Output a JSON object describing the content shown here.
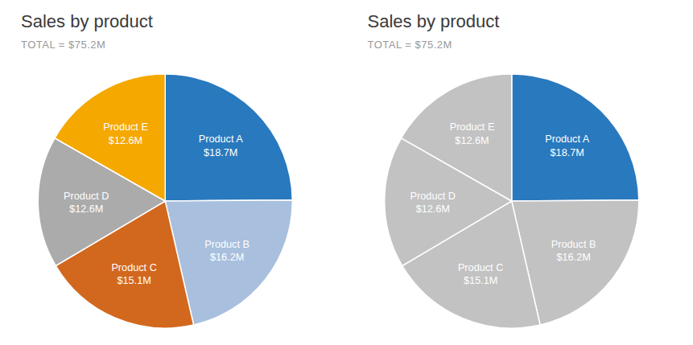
{
  "chart_data": [
    {
      "type": "pie",
      "title": "Sales by product",
      "subtitle": "TOTAL = $75.2M",
      "categories": [
        "Product A",
        "Product B",
        "Product C",
        "Product D",
        "Product E"
      ],
      "values": [
        18.7,
        16.2,
        15.1,
        12.6,
        12.6
      ],
      "value_labels": [
        "$18.7M",
        "$16.2M",
        "$15.1M",
        "$12.6M",
        "$12.6M"
      ],
      "colors": [
        "#2979BE",
        "#A8BFDE",
        "#D2681E",
        "#ABABAB",
        "#F5A800"
      ],
      "data_labels": true
    },
    {
      "type": "pie",
      "title": "Sales by product",
      "subtitle": "TOTAL = $75.2M",
      "categories": [
        "Product A",
        "Product B",
        "Product C",
        "Product D",
        "Product E"
      ],
      "values": [
        18.7,
        16.2,
        15.1,
        12.6,
        12.6
      ],
      "value_labels": [
        "$18.7M",
        "$16.2M",
        "$15.1M",
        "$12.6M",
        "$12.6M"
      ],
      "colors": [
        "#2979BE",
        "#C2C2C2",
        "#C2C2C2",
        "#C2C2C2",
        "#C2C2C2"
      ],
      "data_labels": true
    }
  ]
}
